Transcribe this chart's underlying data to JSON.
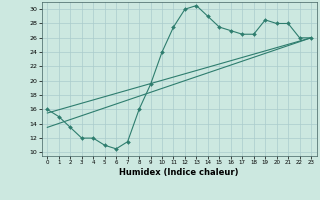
{
  "title": "",
  "xlabel": "Humidex (Indice chaleur)",
  "xlim": [
    -0.5,
    23.5
  ],
  "ylim": [
    9.5,
    31
  ],
  "yticks": [
    10,
    12,
    14,
    16,
    18,
    20,
    22,
    24,
    26,
    28,
    30
  ],
  "xticks": [
    0,
    1,
    2,
    3,
    4,
    5,
    6,
    7,
    8,
    9,
    10,
    11,
    12,
    13,
    14,
    15,
    16,
    17,
    18,
    19,
    20,
    21,
    22,
    23
  ],
  "line_color": "#2e7d6e",
  "bg_color": "#cce8e0",
  "grid_color": "#aacccc",
  "curve_x": [
    0,
    1,
    2,
    3,
    4,
    5,
    6,
    7,
    8,
    9,
    10,
    11,
    12,
    13,
    14,
    15,
    16,
    17,
    18,
    19,
    20,
    21,
    22,
    23
  ],
  "curve_y": [
    16.0,
    15.0,
    13.5,
    12.0,
    12.0,
    11.0,
    10.5,
    11.5,
    16.0,
    19.5,
    24.0,
    27.5,
    30.0,
    30.5,
    29.0,
    27.5,
    27.0,
    26.5,
    26.5,
    28.5,
    28.0,
    28.0,
    26.0,
    26.0
  ],
  "line1_x": [
    0,
    23
  ],
  "line1_y": [
    15.5,
    26.0
  ],
  "line2_x": [
    0,
    23
  ],
  "line2_y": [
    13.5,
    26.0
  ]
}
